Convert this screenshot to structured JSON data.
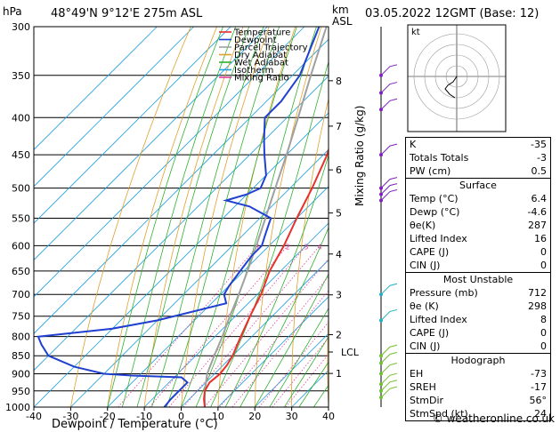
{
  "header": {
    "hpa_label": "hPa",
    "location": "48°49'N  9°12'E  275m  ASL",
    "km_label": "km",
    "asl_label": "ASL",
    "date": "03.05.2022  12GMT  (Base: 12)"
  },
  "legend": [
    {
      "label": "Temperature",
      "color": "#e8302c"
    },
    {
      "label": "Dewpoint",
      "color": "#2040d0"
    },
    {
      "label": "Parcel Trajectory",
      "color": "#a0a0a0"
    },
    {
      "label": "Dry Adiabat",
      "color": "#e0a030"
    },
    {
      "label": "Wet Adiabat",
      "color": "#30b030"
    },
    {
      "label": "Isotherm",
      "color": "#20a0e0"
    },
    {
      "label": "Mixing Ratio",
      "color": "#e040a0"
    }
  ],
  "colors": {
    "temperature": "#e8302c",
    "dewpoint": "#2040d0",
    "parcel": "#a0a0a0",
    "dry_adiabat": "#e0a030",
    "wet_adiabat": "#30b030",
    "isotherm": "#20a0e0",
    "mixing_ratio": "#e040a0",
    "wind_barb": "#8020c0"
  },
  "axes": {
    "xlabel": "Dewpoint / Temperature (°C)",
    "ylabel_right": "Mixing Ratio (g/kg)",
    "lcl_label": "LCL",
    "x_ticks": [
      -40,
      -30,
      -20,
      -10,
      0,
      10,
      20,
      30,
      40
    ],
    "x_range": [
      -40,
      40
    ],
    "p_range": [
      300,
      1000
    ],
    "p_ticks": [
      300,
      350,
      400,
      450,
      500,
      550,
      600,
      650,
      700,
      750,
      800,
      850,
      900,
      950,
      1000
    ],
    "km_ticks": [
      {
        "label": "8",
        "p": 356
      },
      {
        "label": "7",
        "p": 411
      },
      {
        "label": "6",
        "p": 472
      },
      {
        "label": "5",
        "p": 541
      },
      {
        "label": "4",
        "p": 616
      },
      {
        "label": "3",
        "p": 701
      },
      {
        "label": "2",
        "p": 795
      },
      {
        "label": "1",
        "p": 899
      }
    ],
    "lcl_p": 840,
    "mixing_ratio_labels": [
      "1",
      "2",
      "3",
      "4",
      "6",
      "8",
      "10",
      "16",
      "20",
      "25"
    ],
    "mixing_ratio_values": [
      1,
      2,
      3,
      4,
      6,
      8,
      10,
      16,
      20,
      25
    ],
    "mixing_ratio_label_p": 600
  },
  "chart_data": {
    "type": "line",
    "series": [
      {
        "name": "Temperature",
        "points": [
          [
            1000,
            6.4
          ],
          [
            975,
            4
          ],
          [
            950,
            2
          ],
          [
            925,
            1
          ],
          [
            900,
            1.5
          ],
          [
            875,
            1
          ],
          [
            850,
            0
          ],
          [
            800,
            -3
          ],
          [
            750,
            -6
          ],
          [
            700,
            -9
          ],
          [
            650,
            -13
          ],
          [
            600,
            -16
          ],
          [
            550,
            -20
          ],
          [
            500,
            -24
          ],
          [
            450,
            -29
          ],
          [
            400,
            -36
          ],
          [
            350,
            -44
          ],
          [
            300,
            -53
          ]
        ]
      },
      {
        "name": "Dewpoint",
        "points": [
          [
            1000,
            -4.6
          ],
          [
            975,
            -5
          ],
          [
            950,
            -5
          ],
          [
            925,
            -5
          ],
          [
            910,
            -8
          ],
          [
            905,
            -22
          ],
          [
            900,
            -30
          ],
          [
            880,
            -40
          ],
          [
            850,
            -50
          ],
          [
            820,
            -55
          ],
          [
            800,
            -58
          ],
          [
            780,
            -40
          ],
          [
            760,
            -30
          ],
          [
            720,
            -16
          ],
          [
            700,
            -19
          ],
          [
            680,
            -20
          ],
          [
            650,
            -21
          ],
          [
            620,
            -22
          ],
          [
            600,
            -22
          ],
          [
            580,
            -24
          ],
          [
            560,
            -26
          ],
          [
            550,
            -27
          ],
          [
            530,
            -36
          ],
          [
            520,
            -44
          ],
          [
            510,
            -40
          ],
          [
            500,
            -38
          ],
          [
            480,
            -40
          ],
          [
            450,
            -46
          ],
          [
            430,
            -50
          ],
          [
            400,
            -56
          ],
          [
            380,
            -56
          ],
          [
            350,
            -58
          ],
          [
            300,
            -66
          ]
        ]
      },
      {
        "name": "Parcel Trajectory",
        "points": [
          [
            1000,
            6.4
          ],
          [
            950,
            2
          ],
          [
            900,
            -2
          ],
          [
            850,
            -5
          ],
          [
            800,
            -8
          ],
          [
            750,
            -11.5
          ],
          [
            700,
            -15
          ],
          [
            650,
            -19
          ],
          [
            600,
            -23.5
          ],
          [
            550,
            -28.5
          ],
          [
            500,
            -34
          ],
          [
            450,
            -40
          ],
          [
            400,
            -47
          ],
          [
            350,
            -55
          ],
          [
            300,
            -64
          ]
        ]
      }
    ],
    "wind_barbs_p": [
      350,
      370,
      390,
      450,
      500,
      510,
      520,
      700,
      760,
      850,
      870,
      900,
      930,
      950,
      970
    ]
  },
  "hodograph": {
    "label": "kt"
  },
  "indices": [
    {
      "label": "K",
      "value": "-35"
    },
    {
      "label": "Totals Totals",
      "value": "-3"
    },
    {
      "label": "PW (cm)",
      "value": "0.5"
    }
  ],
  "surface": {
    "title": "Surface",
    "rows": [
      {
        "label": "Temp (°C)",
        "value": "6.4"
      },
      {
        "label": "Dewp (°C)",
        "value": "-4.6"
      },
      {
        "label": "θe(K)",
        "value": "287"
      },
      {
        "label": "Lifted Index",
        "value": "16"
      },
      {
        "label": "CAPE (J)",
        "value": "0"
      },
      {
        "label": "CIN (J)",
        "value": "0"
      }
    ]
  },
  "most_unstable": {
    "title": "Most Unstable",
    "rows": [
      {
        "label": "Pressure (mb)",
        "value": "712"
      },
      {
        "label": "θe (K)",
        "value": "298"
      },
      {
        "label": "Lifted Index",
        "value": "8"
      },
      {
        "label": "CAPE (J)",
        "value": "0"
      },
      {
        "label": "CIN (J)",
        "value": "0"
      }
    ]
  },
  "hodograph_table": {
    "title": "Hodograph",
    "rows": [
      {
        "label": "EH",
        "value": "-73"
      },
      {
        "label": "SREH",
        "value": "-17"
      },
      {
        "label": "StmDir",
        "value": "56°"
      },
      {
        "label": "StmSpd (kt)",
        "value": "24"
      }
    ]
  },
  "footer": "© weatheronline.co.uk"
}
